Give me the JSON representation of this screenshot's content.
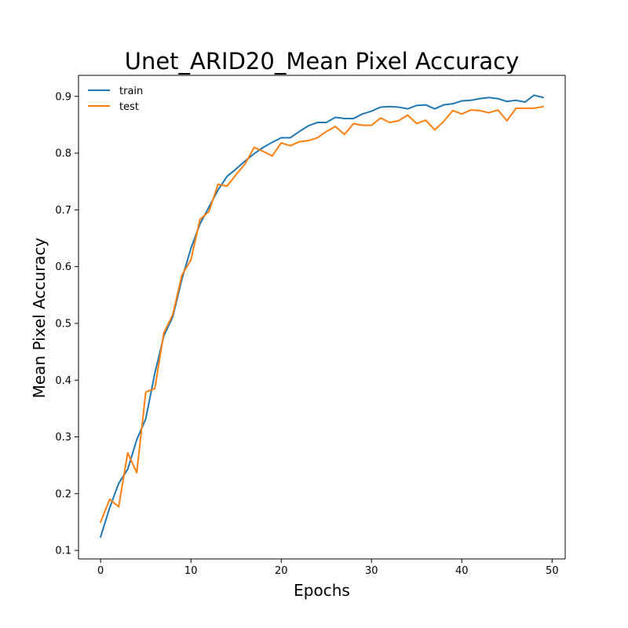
{
  "chart_data": {
    "type": "line",
    "title": "Unet_ARID20_Mean Pixel Accuracy",
    "xlabel": "Epochs",
    "ylabel": "Mean Pixel Accuracy",
    "xlim": [
      -2.45,
      51.45
    ],
    "ylim": [
      0.085,
      0.937
    ],
    "xticks": [
      0,
      10,
      20,
      30,
      40,
      50
    ],
    "yticks": [
      0.1,
      0.2,
      0.3,
      0.4,
      0.5,
      0.6,
      0.7,
      0.8,
      0.9
    ],
    "ytick_labels": [
      "0.1",
      "0.2",
      "0.3",
      "0.4",
      "0.5",
      "0.6",
      "0.7",
      "0.8",
      "0.9"
    ],
    "legend_position": "top-left",
    "grid": false,
    "x": [
      0,
      1,
      2,
      3,
      4,
      5,
      6,
      7,
      8,
      9,
      10,
      11,
      12,
      13,
      14,
      15,
      16,
      17,
      18,
      19,
      20,
      21,
      22,
      23,
      24,
      25,
      26,
      27,
      28,
      29,
      30,
      31,
      32,
      33,
      34,
      35,
      36,
      37,
      38,
      39,
      40,
      41,
      42,
      43,
      44,
      45,
      46,
      47,
      48,
      49
    ],
    "series": [
      {
        "name": "train",
        "color": "#1f77b4",
        "values": [
          0.124,
          0.175,
          0.218,
          0.243,
          0.295,
          0.332,
          0.412,
          0.478,
          0.512,
          0.578,
          0.632,
          0.675,
          0.705,
          0.735,
          0.759,
          0.772,
          0.786,
          0.799,
          0.81,
          0.819,
          0.827,
          0.827,
          0.838,
          0.848,
          0.854,
          0.854,
          0.863,
          0.861,
          0.861,
          0.869,
          0.874,
          0.881,
          0.882,
          0.881,
          0.878,
          0.884,
          0.885,
          0.878,
          0.885,
          0.887,
          0.892,
          0.893,
          0.896,
          0.898,
          0.896,
          0.891,
          0.893,
          0.89,
          0.902,
          0.898
        ]
      },
      {
        "name": "test",
        "color": "#ff7f0e",
        "values": [
          0.15,
          0.19,
          0.177,
          0.272,
          0.237,
          0.379,
          0.385,
          0.483,
          0.516,
          0.585,
          0.612,
          0.683,
          0.697,
          0.745,
          0.742,
          0.762,
          0.781,
          0.81,
          0.803,
          0.795,
          0.818,
          0.813,
          0.82,
          0.822,
          0.827,
          0.838,
          0.847,
          0.833,
          0.852,
          0.849,
          0.849,
          0.862,
          0.854,
          0.857,
          0.867,
          0.852,
          0.858,
          0.841,
          0.856,
          0.875,
          0.869,
          0.876,
          0.875,
          0.871,
          0.876,
          0.857,
          0.879,
          0.879,
          0.879,
          0.882
        ]
      }
    ]
  }
}
